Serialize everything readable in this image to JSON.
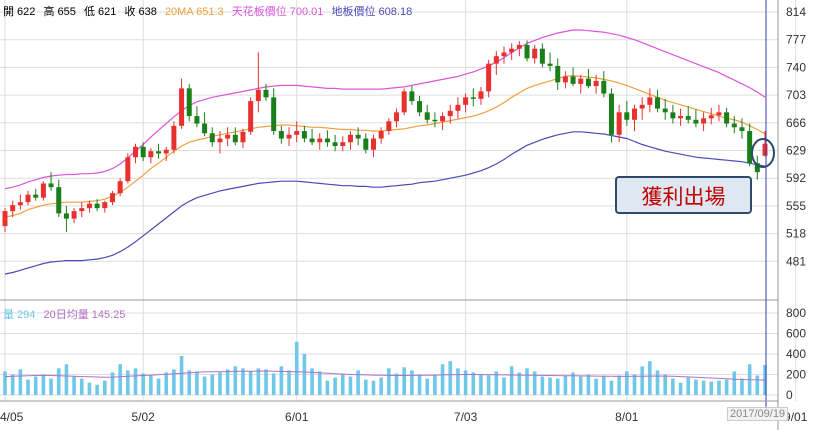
{
  "info": {
    "open": "開 622",
    "high": "高 655",
    "low": "低 621",
    "close": "收 638",
    "ma20": "20MA 651.3",
    "ceiling": "天花板價位 700.01",
    "floor": "地板價位 608.18"
  },
  "volume_info": {
    "label": "量 294",
    "avg": "20日均量 145.25"
  },
  "annotation": "獲利出場",
  "date_stamp": "2017/09/19",
  "colors": {
    "up": "#e8302f",
    "down": "#1a7f1a",
    "ma20": "#f0a040",
    "ceiling": "#dd55dd",
    "floor": "#4b4bb8",
    "volume": "#6fc8e8",
    "vol_avg": "#b070c8",
    "grid": "#dddddd",
    "circle": "#2e4a6b"
  },
  "chart_data": [
    {
      "type": "candlestick",
      "price_ticks": [
        814,
        777,
        740,
        703,
        666,
        629,
        592,
        555,
        518,
        481
      ],
      "ylim": [
        444,
        814
      ],
      "x_ticks": [
        {
          "label": "4/05",
          "index": 0
        },
        {
          "label": "5/02",
          "index": 18
        },
        {
          "label": "6/01",
          "index": 38
        },
        {
          "label": "7/03",
          "index": 60
        },
        {
          "label": "8/01",
          "index": 81
        },
        {
          "label": "9/01",
          "index": 103
        }
      ],
      "candles": [
        [
          528,
          552,
          520,
          548
        ],
        [
          548,
          562,
          540,
          556
        ],
        [
          556,
          570,
          550,
          560
        ],
        [
          560,
          575,
          556,
          570
        ],
        [
          570,
          578,
          562,
          566
        ],
        [
          566,
          588,
          562,
          585
        ],
        [
          585,
          600,
          575,
          580
        ],
        [
          580,
          590,
          540,
          545
        ],
        [
          545,
          555,
          520,
          538
        ],
        [
          538,
          552,
          532,
          548
        ],
        [
          548,
          560,
          540,
          552
        ],
        [
          552,
          562,
          546,
          558
        ],
        [
          558,
          564,
          548,
          552
        ],
        [
          552,
          562,
          546,
          560
        ],
        [
          560,
          575,
          556,
          572
        ],
        [
          572,
          592,
          568,
          588
        ],
        [
          588,
          625,
          585,
          620
        ],
        [
          620,
          638,
          612,
          634
        ],
        [
          634,
          640,
          615,
          620
        ],
        [
          620,
          632,
          612,
          628
        ],
        [
          628,
          638,
          618,
          625
        ],
        [
          625,
          634,
          615,
          630
        ],
        [
          630,
          668,
          625,
          662
        ],
        [
          662,
          725,
          658,
          712
        ],
        [
          712,
          718,
          668,
          675
        ],
        [
          675,
          688,
          660,
          665
        ],
        [
          665,
          680,
          648,
          652
        ],
        [
          652,
          660,
          634,
          640
        ],
        [
          640,
          655,
          625,
          645
        ],
        [
          645,
          660,
          635,
          650
        ],
        [
          650,
          660,
          636,
          640
        ],
        [
          640,
          658,
          632,
          654
        ],
        [
          654,
          700,
          650,
          695
        ],
        [
          695,
          760,
          680,
          710
        ],
        [
          710,
          718,
          695,
          700
        ],
        [
          700,
          712,
          650,
          655
        ],
        [
          655,
          662,
          638,
          645
        ],
        [
          645,
          660,
          635,
          650
        ],
        [
          650,
          668,
          640,
          655
        ],
        [
          655,
          662,
          640,
          645
        ],
        [
          645,
          658,
          636,
          640
        ],
        [
          640,
          652,
          630,
          645
        ],
        [
          645,
          656,
          634,
          640
        ],
        [
          640,
          650,
          628,
          635
        ],
        [
          635,
          648,
          628,
          640
        ],
        [
          640,
          655,
          630,
          650
        ],
        [
          650,
          660,
          636,
          645
        ],
        [
          645,
          652,
          625,
          630
        ],
        [
          630,
          650,
          620,
          645
        ],
        [
          645,
          660,
          638,
          655
        ],
        [
          655,
          672,
          650,
          668
        ],
        [
          668,
          685,
          660,
          680
        ],
        [
          680,
          712,
          676,
          708
        ],
        [
          708,
          715,
          690,
          695
        ],
        [
          695,
          702,
          675,
          680
        ],
        [
          680,
          690,
          665,
          670
        ],
        [
          670,
          680,
          660,
          668
        ],
        [
          668,
          680,
          656,
          675
        ],
        [
          675,
          690,
          665,
          682
        ],
        [
          682,
          700,
          672,
          690
        ],
        [
          690,
          705,
          680,
          700
        ],
        [
          700,
          712,
          688,
          698
        ],
        [
          698,
          714,
          690,
          708
        ],
        [
          708,
          750,
          700,
          745
        ],
        [
          745,
          762,
          730,
          755
        ],
        [
          755,
          768,
          745,
          760
        ],
        [
          760,
          772,
          750,
          765
        ],
        [
          765,
          775,
          755,
          770
        ],
        [
          770,
          776,
          748,
          752
        ],
        [
          752,
          770,
          745,
          765
        ],
        [
          765,
          772,
          740,
          745
        ],
        [
          745,
          760,
          735,
          742
        ],
        [
          742,
          752,
          710,
          720
        ],
        [
          720,
          735,
          712,
          728
        ],
        [
          728,
          740,
          715,
          718
        ],
        [
          718,
          730,
          705,
          725
        ],
        [
          725,
          738,
          712,
          715
        ],
        [
          715,
          730,
          705,
          722
        ],
        [
          722,
          735,
          700,
          705
        ],
        [
          705,
          712,
          640,
          650
        ],
        [
          650,
          690,
          640,
          680
        ],
        [
          680,
          695,
          662,
          670
        ],
        [
          670,
          690,
          655,
          685
        ],
        [
          685,
          700,
          670,
          690
        ],
        [
          690,
          712,
          680,
          700
        ],
        [
          700,
          710,
          680,
          685
        ],
        [
          685,
          698,
          670,
          680
        ],
        [
          680,
          690,
          665,
          672
        ],
        [
          672,
          685,
          662,
          675
        ],
        [
          675,
          688,
          665,
          670
        ],
        [
          670,
          684,
          660,
          665
        ],
        [
          665,
          680,
          655,
          672
        ],
        [
          672,
          686,
          664,
          676
        ],
        [
          676,
          690,
          668,
          680
        ],
        [
          680,
          686,
          660,
          665
        ],
        [
          665,
          675,
          652,
          660
        ],
        [
          660,
          672,
          645,
          655
        ],
        [
          655,
          665,
          608,
          612
        ],
        [
          612,
          622,
          590,
          600
        ],
        [
          622,
          655,
          621,
          638
        ]
      ],
      "ma20": [
        540,
        542,
        545,
        550,
        553,
        556,
        558,
        559,
        560,
        560,
        560,
        561,
        562,
        564,
        568,
        573,
        580,
        588,
        596,
        605,
        612,
        620,
        628,
        635,
        640,
        643,
        645,
        648,
        650,
        652,
        654,
        656,
        658,
        660,
        661,
        662,
        663,
        663,
        662,
        661,
        660,
        660,
        659,
        658,
        657,
        657,
        656,
        656,
        655,
        655,
        656,
        657,
        658,
        660,
        662,
        663,
        665,
        667,
        669,
        671,
        673,
        675,
        678,
        682,
        687,
        693,
        700,
        706,
        712,
        716,
        719,
        722,
        725,
        728,
        729,
        728,
        727,
        726,
        724,
        722,
        719,
        716,
        712,
        708,
        704,
        700,
        696,
        693,
        690,
        687,
        684,
        681,
        678,
        675,
        672,
        670,
        667,
        662,
        657,
        651.3
      ],
      "ceiling": [
        578,
        580,
        583,
        587,
        590,
        593,
        595,
        596,
        597,
        597,
        598,
        598,
        599,
        601,
        605,
        611,
        619,
        628,
        637,
        647,
        656,
        665,
        674,
        682,
        689,
        694,
        697,
        700,
        702,
        704,
        706,
        708,
        710,
        712,
        714,
        715,
        716,
        716,
        716,
        715,
        714,
        713,
        712,
        712,
        711,
        711,
        711,
        711,
        711,
        711,
        712,
        713,
        714,
        716,
        718,
        720,
        722,
        724,
        726,
        728,
        731,
        734,
        738,
        742,
        747,
        753,
        760,
        766,
        772,
        776,
        780,
        783,
        786,
        788,
        790,
        790,
        789,
        788,
        787,
        785,
        783,
        780,
        777,
        773,
        769,
        765,
        761,
        757,
        753,
        749,
        745,
        741,
        737,
        733,
        728,
        723,
        718,
        713,
        707,
        700.01
      ],
      "floor": [
        464,
        466,
        469,
        472,
        475,
        478,
        480,
        481,
        482,
        482,
        482,
        483,
        484,
        486,
        489,
        494,
        500,
        507,
        515,
        523,
        531,
        539,
        547,
        555,
        561,
        566,
        569,
        572,
        575,
        577,
        579,
        581,
        583,
        585,
        586,
        587,
        588,
        588,
        588,
        587,
        586,
        585,
        584,
        583,
        582,
        582,
        581,
        581,
        580,
        580,
        581,
        582,
        583,
        584,
        586,
        587,
        588,
        590,
        592,
        594,
        596,
        599,
        602,
        606,
        611,
        617,
        624,
        630,
        636,
        640,
        644,
        647,
        650,
        652,
        654,
        654,
        653,
        652,
        651,
        649,
        647,
        645,
        641,
        637,
        634,
        631,
        628,
        626,
        624,
        622,
        620,
        619,
        618,
        617,
        616,
        615,
        614,
        612,
        610,
        608.18
      ],
      "volume_ticks": [
        800,
        600,
        400,
        200,
        0
      ],
      "volume_ylim": [
        0,
        800
      ],
      "volume": [
        230,
        200,
        250,
        150,
        180,
        200,
        160,
        260,
        300,
        180,
        160,
        120,
        100,
        140,
        220,
        300,
        240,
        260,
        210,
        190,
        160,
        220,
        250,
        380,
        240,
        230,
        180,
        200,
        220,
        250,
        280,
        260,
        230,
        260,
        250,
        210,
        280,
        240,
        520,
        400,
        260,
        230,
        140,
        170,
        210,
        180,
        240,
        150,
        140,
        170,
        260,
        210,
        270,
        240,
        200,
        160,
        200,
        300,
        330,
        260,
        240,
        220,
        200,
        190,
        230,
        170,
        280,
        220,
        260,
        230,
        180,
        170,
        160,
        190,
        220,
        180,
        200,
        160,
        190,
        140,
        190,
        230,
        200,
        280,
        330,
        240,
        200,
        160,
        120,
        170,
        150,
        140,
        130,
        140,
        150,
        230,
        160,
        300,
        190,
        294
      ],
      "volume_avg": [
        180,
        182,
        185,
        188,
        190,
        192,
        190,
        188,
        185,
        182,
        180,
        178,
        176,
        174,
        175,
        178,
        182,
        186,
        190,
        194,
        198,
        202,
        206,
        212,
        218,
        222,
        225,
        226,
        227,
        228,
        230,
        231,
        232,
        233,
        234,
        232,
        230,
        228,
        226,
        224,
        220,
        216,
        212,
        208,
        204,
        201,
        198,
        196,
        194,
        192,
        191,
        190,
        190,
        191,
        192,
        193,
        194,
        196,
        198,
        199,
        200,
        200,
        199,
        198,
        197,
        196,
        195,
        194,
        193,
        192,
        191,
        190,
        189,
        188,
        187,
        186,
        185,
        184,
        183,
        182,
        181,
        181,
        182,
        183,
        184,
        185,
        184,
        182,
        180,
        177,
        174,
        170,
        166,
        162,
        158,
        154,
        151,
        149,
        147,
        145.25
      ]
    }
  ]
}
